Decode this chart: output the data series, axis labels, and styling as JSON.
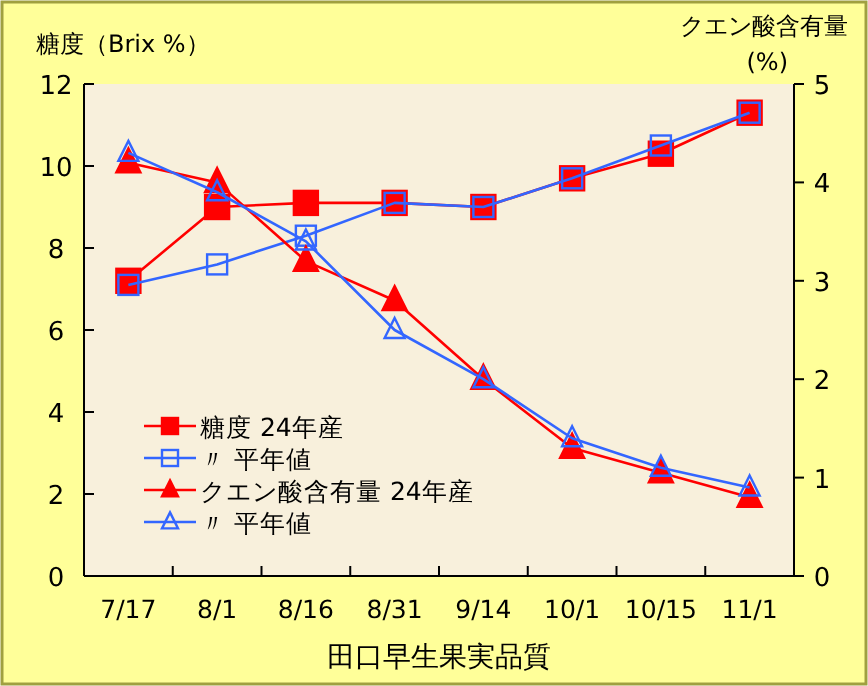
{
  "chart_data": {
    "type": "line",
    "xlabel": "田口早生果実品質",
    "ylabel": "糖度（Brix %）",
    "y2label": "クエン酸含有量 (%)",
    "categories": [
      "7/17",
      "8/1",
      "8/16",
      "8/31",
      "9/14",
      "10/1",
      "10/15",
      "11/1"
    ],
    "ylim": [
      0,
      12
    ],
    "yticks": [
      0,
      2,
      4,
      6,
      8,
      10,
      12
    ],
    "y2lim": [
      0,
      5
    ],
    "y2ticks": [
      0,
      1,
      2,
      3,
      4,
      5
    ],
    "grid": false,
    "legend": "bottom left",
    "series": [
      {
        "name": "糖度 24年産",
        "color": "#ff0000",
        "marker": "square",
        "values": [
          7.2,
          9.0,
          9.1,
          9.1,
          9.0,
          9.7,
          10.3,
          11.3
        ]
      },
      {
        "name": "〃 平年値",
        "color": "#3366ff",
        "marker": "square",
        "values": [
          7.1,
          7.6,
          8.3,
          9.1,
          9.0,
          9.7,
          10.5,
          11.3
        ]
      },
      {
        "name": "クエン酸含有量 24年産",
        "color": "#ff0000",
        "marker": "triangle",
        "axis": "y2",
        "values": [
          4.2,
          4.0,
          3.2,
          2.8,
          2.0,
          1.3,
          1.05,
          0.8
        ]
      },
      {
        "name": "〃 平年値",
        "color": "#3366ff",
        "marker": "triangle",
        "axis": "y2",
        "values": [
          4.3,
          3.9,
          3.4,
          2.5,
          2.0,
          1.4,
          1.1,
          0.9
        ]
      }
    ]
  }
}
